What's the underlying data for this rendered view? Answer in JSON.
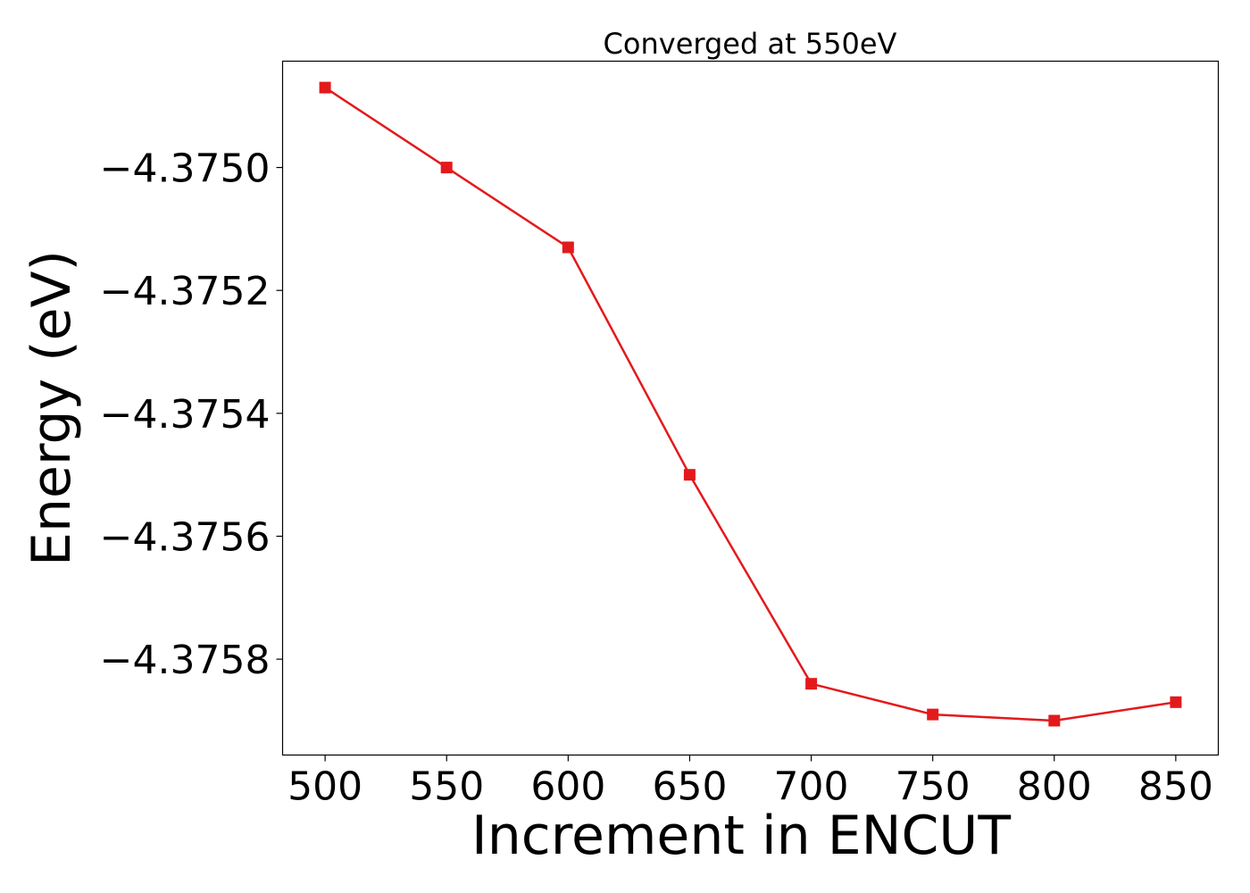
{
  "chart_data": {
    "type": "line",
    "title": "Converged at 550eV",
    "xlabel": "Increment in ENCUT",
    "ylabel": "Energy (eV)",
    "x": [
      500,
      550,
      600,
      650,
      700,
      750,
      800,
      850
    ],
    "series": [
      {
        "values": [
          -4.37487,
          -4.375,
          -4.37513,
          -4.3755,
          -4.37584,
          -4.37589,
          -4.3759,
          -4.37587
        ],
        "color": "#e31a1c",
        "marker": "square"
      }
    ],
    "xticks": [
      500,
      550,
      600,
      650,
      700,
      750,
      800,
      850
    ],
    "xtick_labels": [
      "500",
      "550",
      "600",
      "650",
      "700",
      "750",
      "800",
      "850"
    ],
    "yticks": [
      -4.375,
      -4.3752,
      -4.3754,
      -4.3756,
      -4.3758
    ],
    "ytick_labels": [
      "−4.3750",
      "−4.3752",
      "−4.3754",
      "−4.3756",
      "−4.3758"
    ],
    "xlim": [
      482.5,
      867.5
    ],
    "ylim": [
      -4.375956,
      -4.374827
    ],
    "grid": false,
    "legend": "none"
  }
}
